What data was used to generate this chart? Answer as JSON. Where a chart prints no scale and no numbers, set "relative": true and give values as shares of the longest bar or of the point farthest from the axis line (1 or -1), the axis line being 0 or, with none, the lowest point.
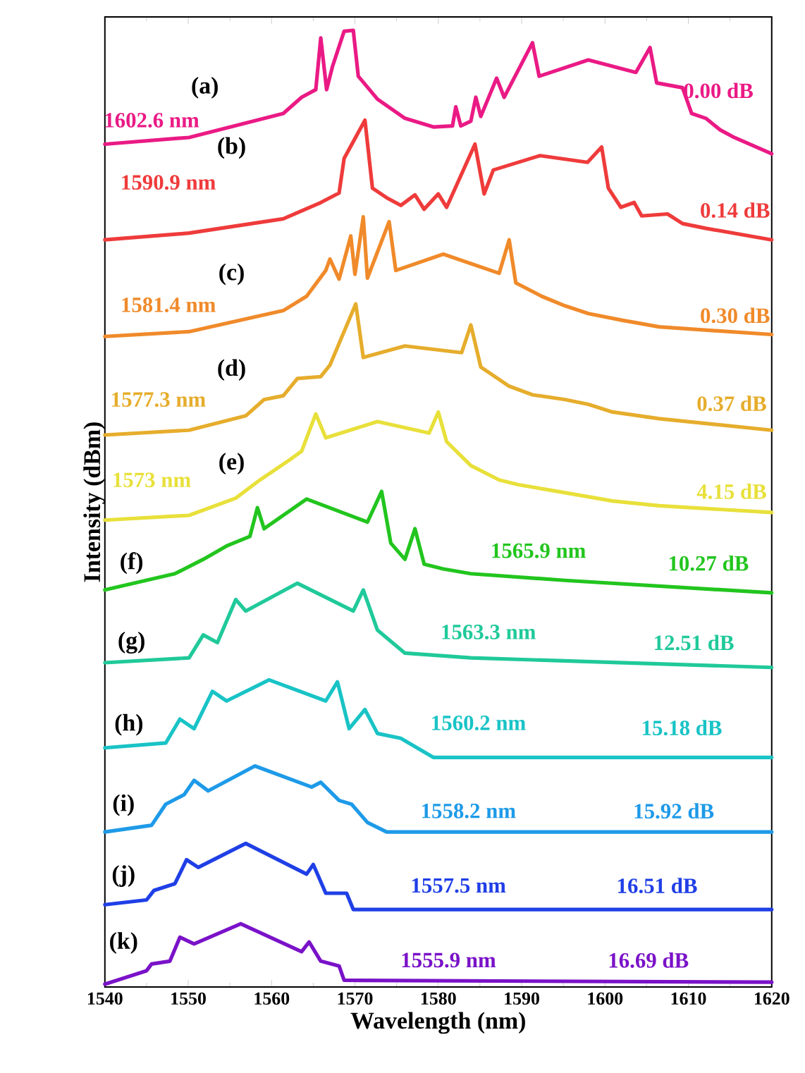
{
  "chart_data": {
    "type": "line",
    "relative": true,
    "xlabel": "Wavelength (nm)",
    "ylabel": "Intensity (dBm)",
    "xlim": [
      1540,
      1620
    ],
    "xticks": [
      1540,
      1550,
      1560,
      1570,
      1580,
      1590,
      1600,
      1610,
      1620
    ],
    "tick_labels": "x",
    "grid": false,
    "marker": "none",
    "line_style": "solid",
    "series": [
      {
        "color": "#ea1a85",
        "x": [
          1540,
          1550.1,
          1561.4,
          1563.6,
          1565.3,
          1565.9,
          1566.6,
          1567.3,
          1568.7,
          1569.8,
          1570.4,
          1572.7,
          1576.0,
          1579.4,
          1581.7,
          1582.1,
          1582.7,
          1583.9,
          1584.5,
          1585.1,
          1587.0,
          1587.9,
          1591.3,
          1592.1,
          1598.0,
          1603.7,
          1605.4,
          1606.2,
          1609.3,
          1610.4,
          1612.1,
          1613.8,
          1615.5,
          1620
        ],
        "values": [
          0.881,
          0.888,
          0.913,
          0.93,
          0.938,
          0.992,
          0.938,
          0.962,
          0.999,
          1.0,
          0.952,
          0.928,
          0.908,
          0.899,
          0.9,
          0.92,
          0.9,
          0.905,
          0.93,
          0.91,
          0.95,
          0.93,
          0.987,
          0.952,
          0.969,
          0.956,
          0.982,
          0.945,
          0.94,
          0.913,
          0.908,
          0.896,
          0.888,
          0.871
        ]
      },
      {
        "color": "#ef3b3b",
        "x": [
          1540,
          1550.1,
          1561.4,
          1565.9,
          1568.1,
          1568.7,
          1571.2,
          1572.1,
          1573.8,
          1575.5,
          1577.2,
          1578.3,
          1580.0,
          1581.0,
          1584.4,
          1585.5,
          1586.6,
          1592.2,
          1597.9,
          1599.6,
          1600.4,
          1601.9,
          1603.5,
          1604.4,
          1607.5,
          1609.3,
          1612.1,
          1620
        ],
        "values": [
          0.781,
          0.788,
          0.803,
          0.82,
          0.83,
          0.866,
          0.906,
          0.835,
          0.825,
          0.817,
          0.828,
          0.813,
          0.829,
          0.815,
          0.881,
          0.829,
          0.854,
          0.869,
          0.862,
          0.878,
          0.835,
          0.815,
          0.82,
          0.806,
          0.808,
          0.798,
          0.793,
          0.781
        ]
      },
      {
        "color": "#f08a2a",
        "x": [
          1540,
          1550.1,
          1561.4,
          1564.2,
          1566.5,
          1567.0,
          1568.1,
          1569.5,
          1570.0,
          1571.0,
          1571.5,
          1574.1,
          1574.9,
          1580.6,
          1587.3,
          1588.5,
          1589.3,
          1592.4,
          1595.2,
          1598.0,
          1602.0,
          1606.5,
          1620
        ],
        "values": [
          0.68,
          0.685,
          0.707,
          0.722,
          0.749,
          0.761,
          0.74,
          0.785,
          0.745,
          0.805,
          0.741,
          0.8,
          0.749,
          0.766,
          0.746,
          0.781,
          0.736,
          0.722,
          0.712,
          0.704,
          0.697,
          0.69,
          0.682
        ]
      },
      {
        "color": "#e6ad2c",
        "x": [
          1540,
          1550.1,
          1556.9,
          1559.1,
          1561.4,
          1563.1,
          1565.9,
          1567.0,
          1570.1,
          1571.0,
          1576.0,
          1582.8,
          1583.9,
          1585.1,
          1588.5,
          1591.3,
          1595.2,
          1598.0,
          1600.9,
          1606.5,
          1620
        ],
        "values": [
          0.577,
          0.582,
          0.597,
          0.614,
          0.618,
          0.636,
          0.638,
          0.65,
          0.714,
          0.658,
          0.67,
          0.663,
          0.692,
          0.648,
          0.628,
          0.619,
          0.614,
          0.609,
          0.601,
          0.594,
          0.582
        ]
      },
      {
        "color": "#e8e03a",
        "x": [
          1540,
          1550.1,
          1555.7,
          1558.6,
          1562.0,
          1563.6,
          1565.3,
          1566.5,
          1572.7,
          1578.9,
          1580.0,
          1581.0,
          1583.9,
          1587.3,
          1589.6,
          1593.0,
          1596.3,
          1600.9,
          1606.5,
          1620
        ],
        "values": [
          0.488,
          0.493,
          0.511,
          0.53,
          0.55,
          0.56,
          0.599,
          0.574,
          0.591,
          0.579,
          0.601,
          0.57,
          0.545,
          0.53,
          0.525,
          0.52,
          0.515,
          0.508,
          0.503,
          0.496
        ]
      },
      {
        "color": "#22c51e",
        "x": [
          1540,
          1548.4,
          1551.8,
          1554.6,
          1557.4,
          1558.3,
          1559.1,
          1564.2,
          1571.5,
          1573.2,
          1574.3,
          1576.0,
          1577.2,
          1578.3,
          1580.6,
          1583.9,
          1595.2,
          1620
        ],
        "values": [
          0.415,
          0.432,
          0.447,
          0.461,
          0.471,
          0.501,
          0.479,
          0.51,
          0.486,
          0.518,
          0.464,
          0.447,
          0.479,
          0.442,
          0.437,
          0.432,
          0.425,
          0.412
        ]
      },
      {
        "color": "#20c99a",
        "x": [
          1540,
          1550.1,
          1551.8,
          1553.5,
          1555.7,
          1556.9,
          1563.1,
          1569.8,
          1571.0,
          1572.7,
          1576.0,
          1583.9,
          1620
        ],
        "values": [
          0.339,
          0.344,
          0.368,
          0.36,
          0.405,
          0.393,
          0.422,
          0.393,
          0.415,
          0.373,
          0.349,
          0.344,
          0.334
        ]
      },
      {
        "color": "#19c3c6",
        "x": [
          1540,
          1547.3,
          1549.0,
          1550.7,
          1552.9,
          1554.6,
          1559.7,
          1566.5,
          1567.9,
          1569.3,
          1571.2,
          1572.7,
          1575.5,
          1579.4,
          1620
        ],
        "values": [
          0.25,
          0.255,
          0.28,
          0.27,
          0.309,
          0.299,
          0.321,
          0.299,
          0.319,
          0.27,
          0.29,
          0.265,
          0.26,
          0.24,
          0.24
        ]
      },
      {
        "color": "#1e9ae8",
        "x": [
          1540,
          1545.6,
          1547.3,
          1549.5,
          1550.7,
          1552.4,
          1558.0,
          1564.8,
          1565.9,
          1568.1,
          1569.6,
          1571.5,
          1573.8,
          1620
        ],
        "values": [
          0.162,
          0.169,
          0.191,
          0.201,
          0.216,
          0.205,
          0.231,
          0.209,
          0.214,
          0.195,
          0.191,
          0.172,
          0.162,
          0.162
        ]
      },
      {
        "color": "#1f3fe6",
        "x": [
          1540,
          1545.0,
          1545.9,
          1548.4,
          1549.8,
          1551.2,
          1556.9,
          1564.2,
          1565.0,
          1566.5,
          1569.0,
          1569.8,
          1620
        ],
        "values": [
          0.086,
          0.091,
          0.101,
          0.108,
          0.133,
          0.125,
          0.15,
          0.118,
          0.128,
          0.098,
          0.098,
          0.081,
          0.081
        ]
      },
      {
        "color": "#7a12c8",
        "x": [
          1540,
          1545.0,
          1545.6,
          1547.8,
          1549.0,
          1550.7,
          1556.3,
          1563.6,
          1564.5,
          1565.9,
          1568.1,
          1568.7,
          1620
        ],
        "values": [
          0.003,
          0.017,
          0.024,
          0.027,
          0.052,
          0.045,
          0.066,
          0.037,
          0.047,
          0.027,
          0.022,
          0.007,
          0.005
        ]
      }
    ],
    "annotations": [
      "(a)",
      "1602.6 nm",
      "0.00 dB",
      "(b)",
      "1590.9 nm",
      "0.14 dB",
      "(c)",
      "1581.4 nm",
      "0.30 dB",
      "(d)",
      "1577.3 nm",
      "0.37 dB",
      "(e)",
      "1573 nm",
      "4.15 dB",
      "(f)",
      "1565.9 nm",
      "10.27 dB",
      "(g)",
      "1563.3 nm",
      "12.51 dB",
      "(h)",
      "1560.2 nm",
      "15.18 dB",
      "(i)",
      "1558.2 nm",
      "15.92 dB",
      "(j)",
      "1557.5 nm",
      "16.51 dB",
      "(k)",
      "1555.9 nm",
      "16.69 dB"
    ]
  }
}
